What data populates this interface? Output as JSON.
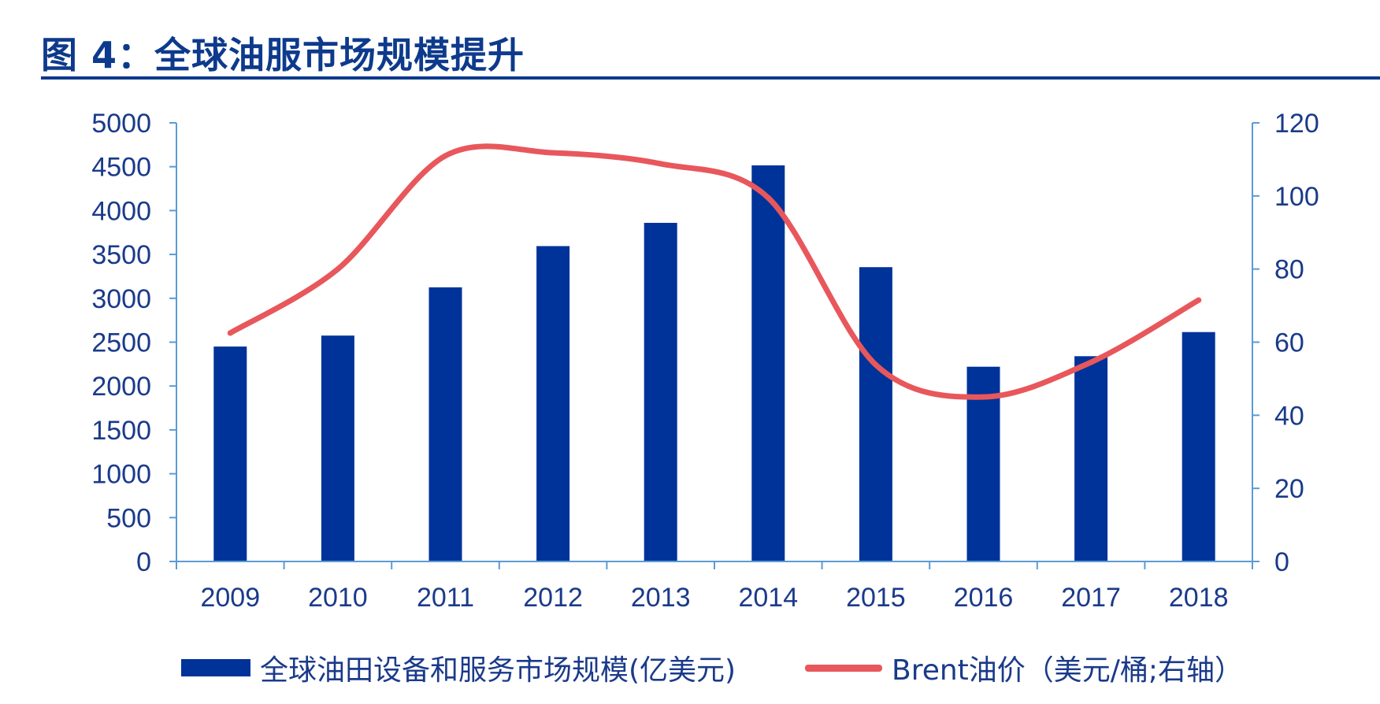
{
  "title": "图 4：全球油服市场规模提升",
  "colors": {
    "bar": "#003399",
    "line": "#e8575b",
    "axis": "#5b9bd5",
    "text": "#1a3a8a",
    "title": "#0d3a8c"
  },
  "chart_data": {
    "type": "bar",
    "categories": [
      "2009",
      "2010",
      "2011",
      "2012",
      "2013",
      "2014",
      "2015",
      "2016",
      "2017",
      "2018"
    ],
    "series": [
      {
        "name": "全球油田设备和服务市场规模(亿美元)",
        "type": "bar",
        "axis": "left",
        "values": [
          2450,
          2575,
          3125,
          3595,
          3860,
          4515,
          3355,
          2220,
          2340,
          2615
        ]
      },
      {
        "name": "Brent油价（美元/桶;右轴）",
        "type": "line",
        "axis": "right",
        "values": [
          62.5,
          80,
          111,
          111.8,
          108.8,
          99.5,
          53.8,
          45,
          54.5,
          71.5
        ]
      }
    ],
    "y_left": {
      "ylim": [
        0,
        5000
      ],
      "ticks": [
        "0",
        "500",
        "1000",
        "1500",
        "2000",
        "2500",
        "3000",
        "3500",
        "4000",
        "4500",
        "5000"
      ]
    },
    "y_right": {
      "ylim": [
        0,
        120
      ],
      "ticks": [
        "0",
        "20",
        "40",
        "60",
        "80",
        "100",
        "120"
      ]
    },
    "legend_position": "bottom",
    "grid": false
  },
  "legend": {
    "bar_label": "全球油田设备和服务市场规模(亿美元)",
    "line_label": "Brent油价（美元/桶;右轴）"
  }
}
